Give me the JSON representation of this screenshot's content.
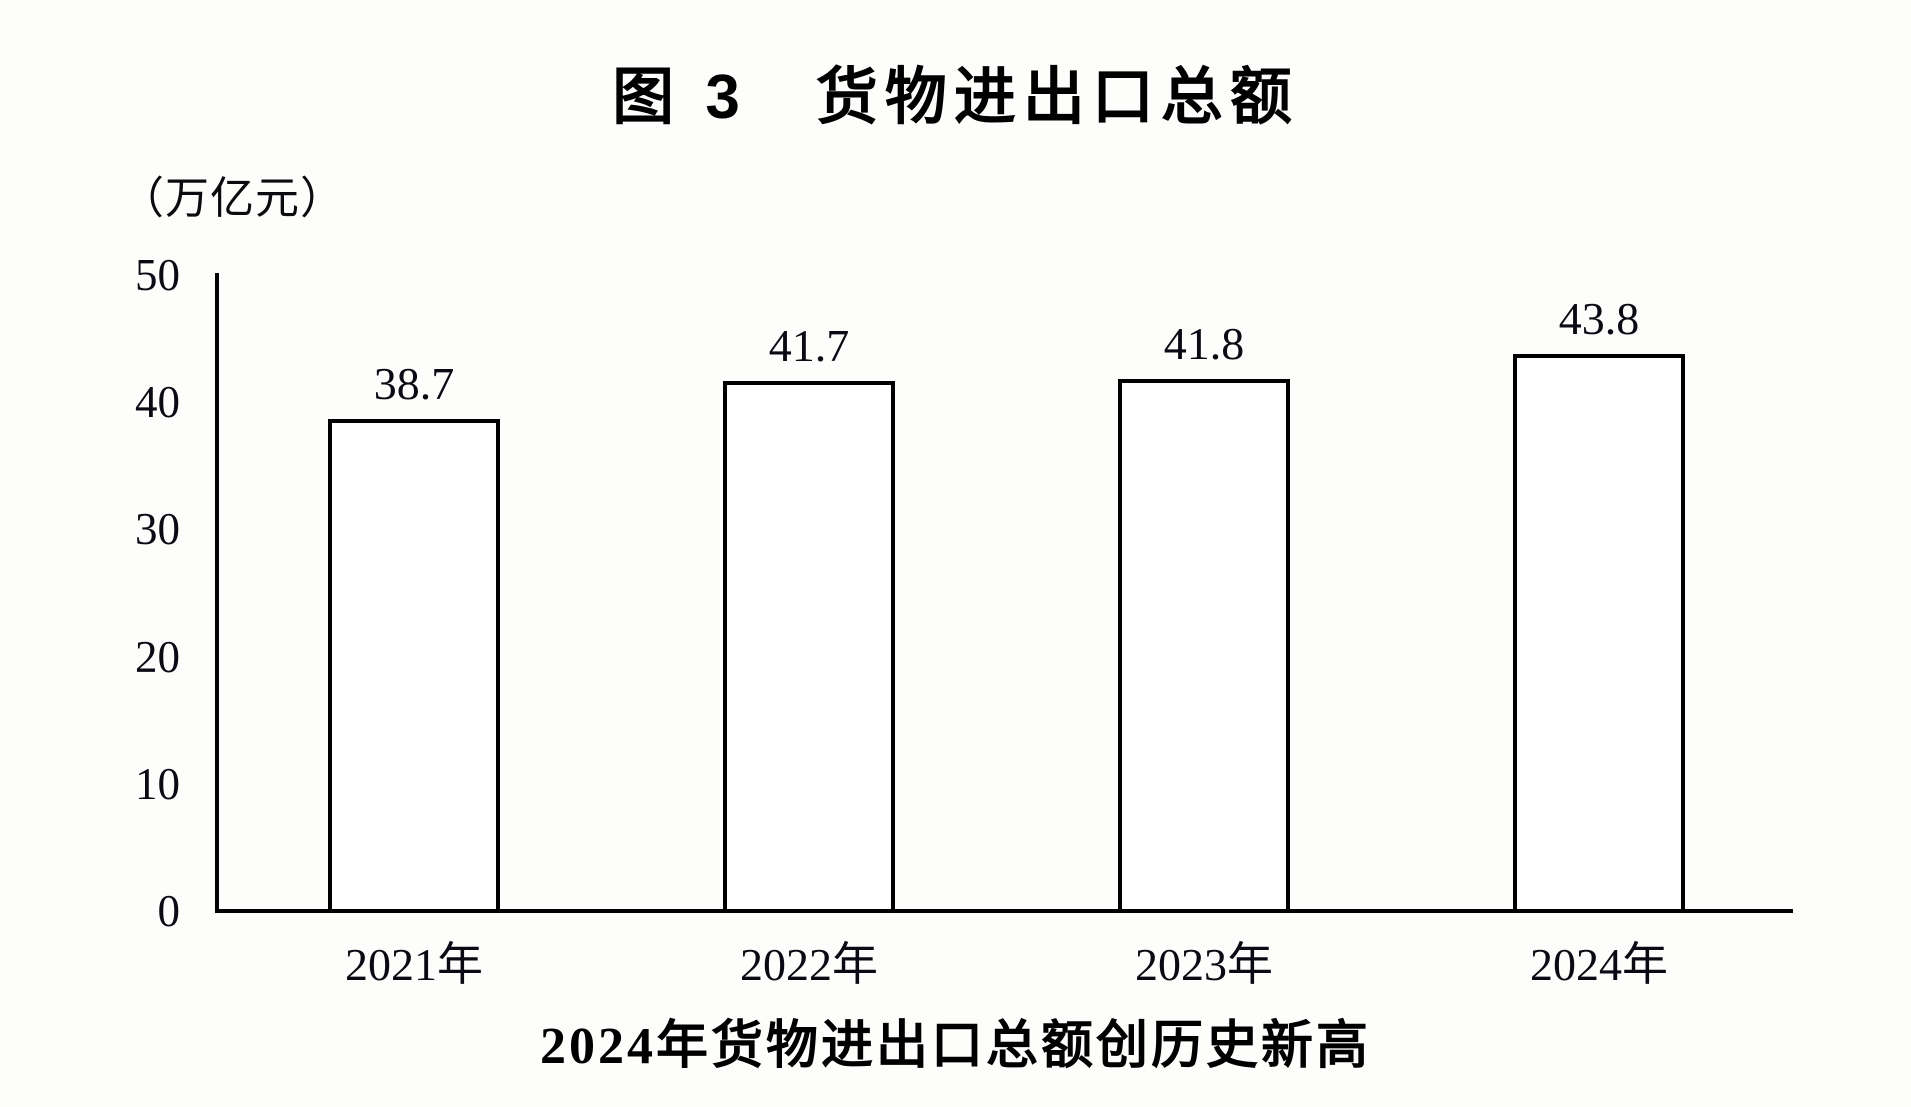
{
  "figure": {
    "title": "图 3　货物进出口总额",
    "unit_label": "（万亿元）",
    "caption": "2024年货物进出口总额创历史新高"
  },
  "chart_data": {
    "type": "bar",
    "title": "图 3　货物进出口总额",
    "subtitle": "2024年货物进出口总额创历史新高",
    "categories": [
      "2021年",
      "2022年",
      "2023年",
      "2024年"
    ],
    "values": [
      38.7,
      41.7,
      41.8,
      43.8
    ],
    "data_labels": [
      "38.7",
      "41.7",
      "41.8",
      "43.8"
    ],
    "xlabel": "",
    "ylabel": "（万亿元）",
    "ylim": [
      0,
      50
    ],
    "y_ticks": [
      "0",
      "10",
      "20",
      "30",
      "40",
      "50"
    ],
    "grid": false,
    "legend": false,
    "bar_fill_color": "#ffffff",
    "bar_border_color": "#000000",
    "axis_color": "#000000",
    "text_color": "#000000",
    "background_color": "#fdfdfb"
  }
}
